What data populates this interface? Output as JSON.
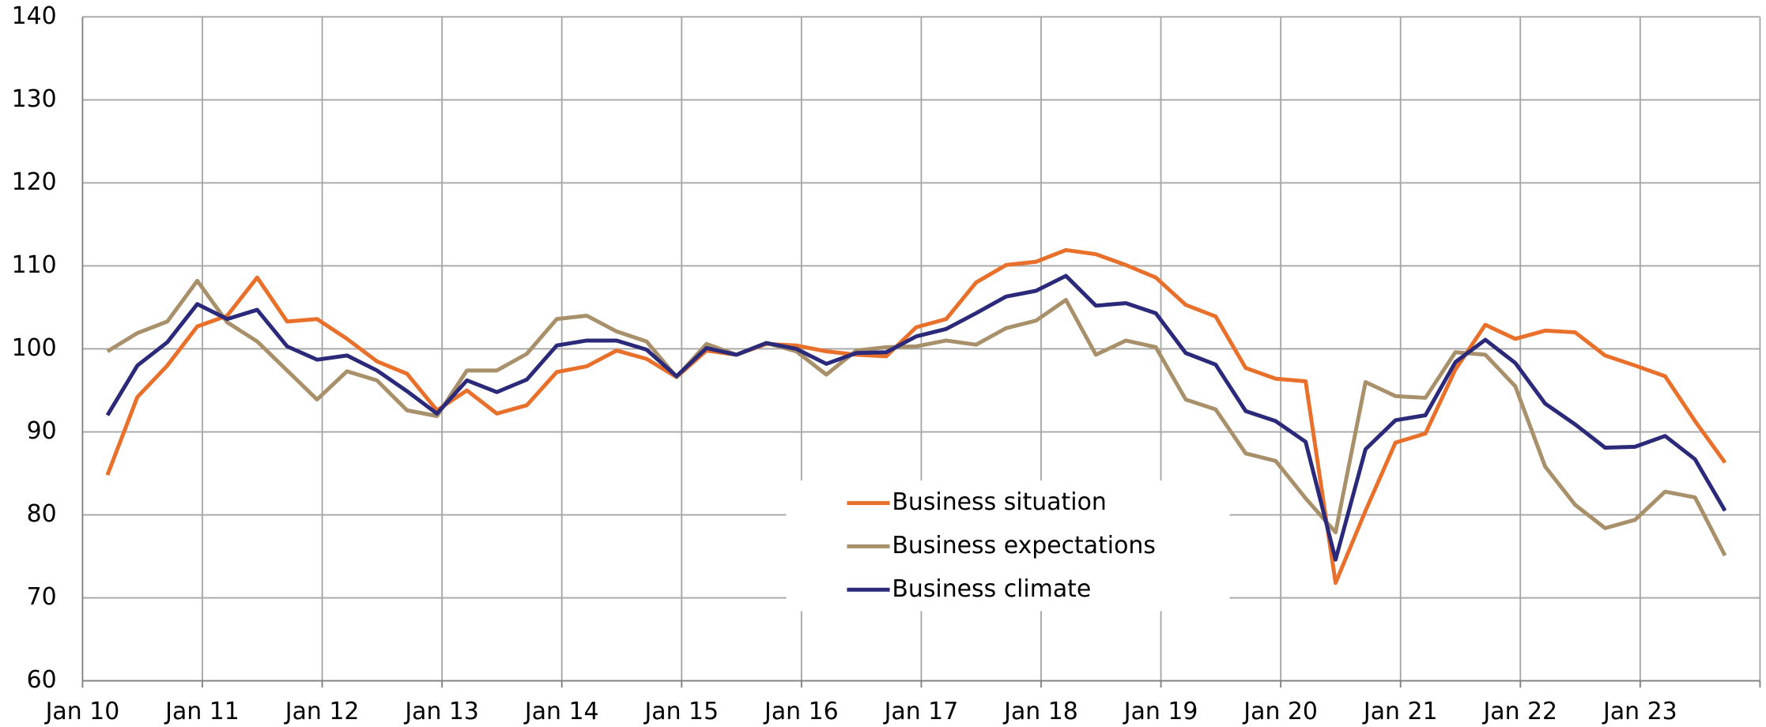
{
  "chart_data": {
    "type": "line",
    "x_labels": [
      "Jan 10",
      "Jan 11",
      "Jan 12",
      "Jan 13",
      "Jan 14",
      "Jan 15",
      "Jan 16",
      "Jan 17",
      "Jan 18",
      "Jan 19",
      "Jan 20",
      "Jan 21",
      "Jan 22",
      "Jan 23"
    ],
    "ylim": [
      60,
      140
    ],
    "yticks": [
      60,
      70,
      80,
      90,
      100,
      110,
      120,
      130,
      140
    ],
    "grid": true,
    "legend": "center-bottom",
    "series": [
      {
        "name": "Business situation",
        "color": "#e8702a",
        "values": [
          84.8,
          94.2,
          98.0,
          102.7,
          104.0,
          108.6,
          103.3,
          103.6,
          101.2,
          98.5,
          97.0,
          92.6,
          95.0,
          92.2,
          93.2,
          97.2,
          97.9,
          99.8,
          98.8,
          96.6,
          99.8,
          99.3,
          100.6,
          100.4,
          99.7,
          99.3,
          99.1,
          102.6,
          103.6,
          108.0,
          110.1,
          110.5,
          111.9,
          111.4,
          110.1,
          108.6,
          105.3,
          103.9,
          97.7,
          96.4,
          96.1,
          71.8,
          80.5,
          88.7,
          89.8,
          97.5,
          102.9,
          101.2,
          102.2,
          102.0,
          99.2,
          98.0,
          96.7,
          91.3,
          86.3
        ]
      },
      {
        "name": "Business expectations",
        "color": "#a8906a",
        "values": [
          99.7,
          101.9,
          103.3,
          108.2,
          103.2,
          100.9,
          97.4,
          93.9,
          97.3,
          96.2,
          92.6,
          91.9,
          97.4,
          97.4,
          99.4,
          103.6,
          104.0,
          102.1,
          100.9,
          96.6,
          100.6,
          99.3,
          100.7,
          99.7,
          96.9,
          99.8,
          100.2,
          100.3,
          101.0,
          100.5,
          102.5,
          103.4,
          105.9,
          99.3,
          101.0,
          100.2,
          93.9,
          92.7,
          87.4,
          86.5,
          82.0,
          77.9,
          96.0,
          94.3,
          94.1,
          99.6,
          99.3,
          95.5,
          85.8,
          81.2,
          78.4,
          79.4,
          82.8,
          82.1,
          75.1
        ]
      },
      {
        "name": "Business climate",
        "color": "#2b2a7a",
        "values": [
          92.0,
          98.0,
          100.8,
          105.4,
          103.6,
          104.7,
          100.3,
          98.7,
          99.2,
          97.4,
          94.9,
          92.2,
          96.2,
          94.8,
          96.3,
          100.4,
          101.0,
          101.0,
          99.9,
          96.7,
          100.1,
          99.3,
          100.7,
          100.0,
          98.2,
          99.5,
          99.6,
          101.5,
          102.4,
          104.3,
          106.3,
          107.0,
          108.8,
          105.2,
          105.5,
          104.3,
          99.5,
          98.1,
          92.5,
          91.3,
          88.8,
          74.6,
          87.9,
          91.4,
          92.0,
          98.4,
          101.1,
          98.3,
          93.4,
          90.9,
          88.1,
          88.2,
          89.5,
          86.7,
          80.5
        ]
      }
    ]
  }
}
